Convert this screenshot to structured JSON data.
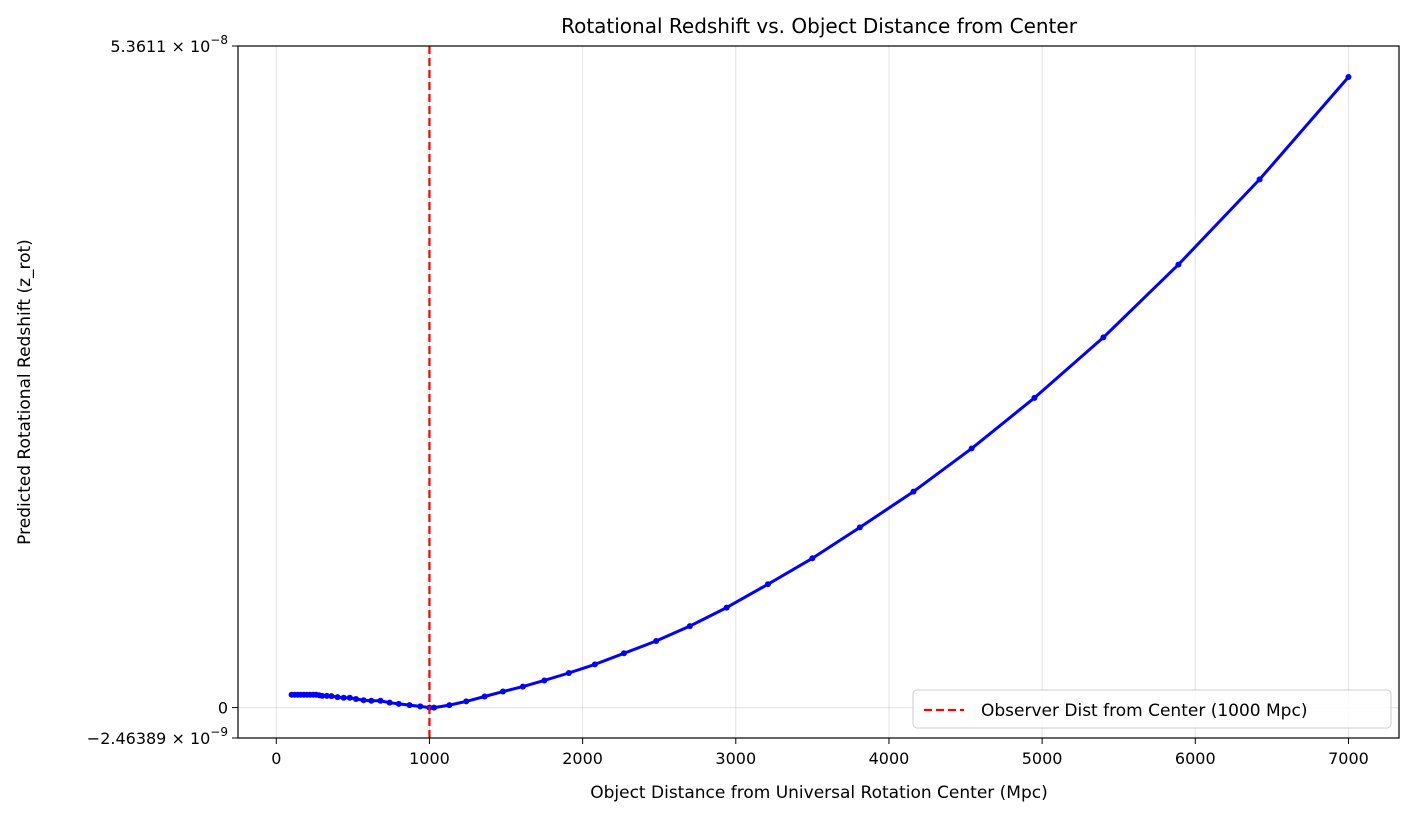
{
  "chart_data": {
    "type": "line",
    "title": "Rotational Redshift vs. Object Distance from Center",
    "xlabel": "Object Distance from Universal Rotation Center (Mpc)",
    "ylabel": "Predicted Rotational Redshift (z_rot)",
    "xlim": [
      -250,
      7330
    ],
    "ylim": [
      -2.46389e-09,
      5.3611e-08
    ],
    "x_ticks": [
      {
        "value": 0,
        "label": "0"
      },
      {
        "value": 1000,
        "label": "1000"
      },
      {
        "value": 2000,
        "label": "2000"
      },
      {
        "value": 3000,
        "label": "3000"
      },
      {
        "value": 4000,
        "label": "4000"
      },
      {
        "value": 5000,
        "label": "5000"
      },
      {
        "value": 6000,
        "label": "6000"
      },
      {
        "value": 7000,
        "label": "7000"
      }
    ],
    "y_ticks": [
      {
        "value": -2.46389e-09,
        "mantissa": "−2.46389",
        "base": "10",
        "exponent": "−9"
      },
      {
        "value": 0,
        "mantissa": "0",
        "base": "",
        "exponent": ""
      },
      {
        "value": 5.3611e-08,
        "mantissa": "5.3611",
        "base": "10",
        "exponent": "−8"
      }
    ],
    "grid": true,
    "legend_position": "bottom-right",
    "series": [
      {
        "name": "",
        "color": "#0000ff",
        "style": "solid",
        "x": [
          100,
          120,
          140,
          160,
          180,
          200,
          220,
          240,
          260,
          280,
          300,
          330,
          360,
          400,
          440,
          480,
          520,
          570,
          620,
          680,
          740,
          800,
          870,
          940,
          1000,
          1030,
          1130,
          1240,
          1360,
          1480,
          1610,
          1750,
          1910,
          2080,
          2270,
          2480,
          2700,
          2940,
          3210,
          3500,
          3810,
          4160,
          4540,
          4950,
          5400,
          5890,
          6420,
          7000
        ],
        "y": [
          1.04e-09,
          1.04e-09,
          1.04e-09,
          1.04e-09,
          1.04e-09,
          1.04e-09,
          1.04e-09,
          1.04e-09,
          1.04e-09,
          1e-09,
          9.5e-10,
          9.5e-10,
          9.3e-10,
          8.5e-10,
          8e-10,
          8e-10,
          7e-10,
          6e-10,
          5.5e-10,
          5.5e-10,
          4e-10,
          3e-10,
          2e-10,
          1e-10,
          0.0,
          0.0,
          2e-10,
          5e-10,
          9e-10,
          1.3e-09,
          1.7e-09,
          2.2e-09,
          2.8e-09,
          3.5e-09,
          4.4e-09,
          5.4e-09,
          6.6e-09,
          8.1e-09,
          1e-08,
          1.21e-08,
          1.46e-08,
          1.75e-08,
          2.1e-08,
          2.51e-08,
          3e-08,
          3.59e-08,
          4.28e-08,
          5.11e-08
        ]
      },
      {
        "name": "Observer Dist from Center (1000 Mpc)",
        "color": "#ff0000",
        "style": "dashed",
        "vertical_line_x": 1000
      }
    ]
  }
}
